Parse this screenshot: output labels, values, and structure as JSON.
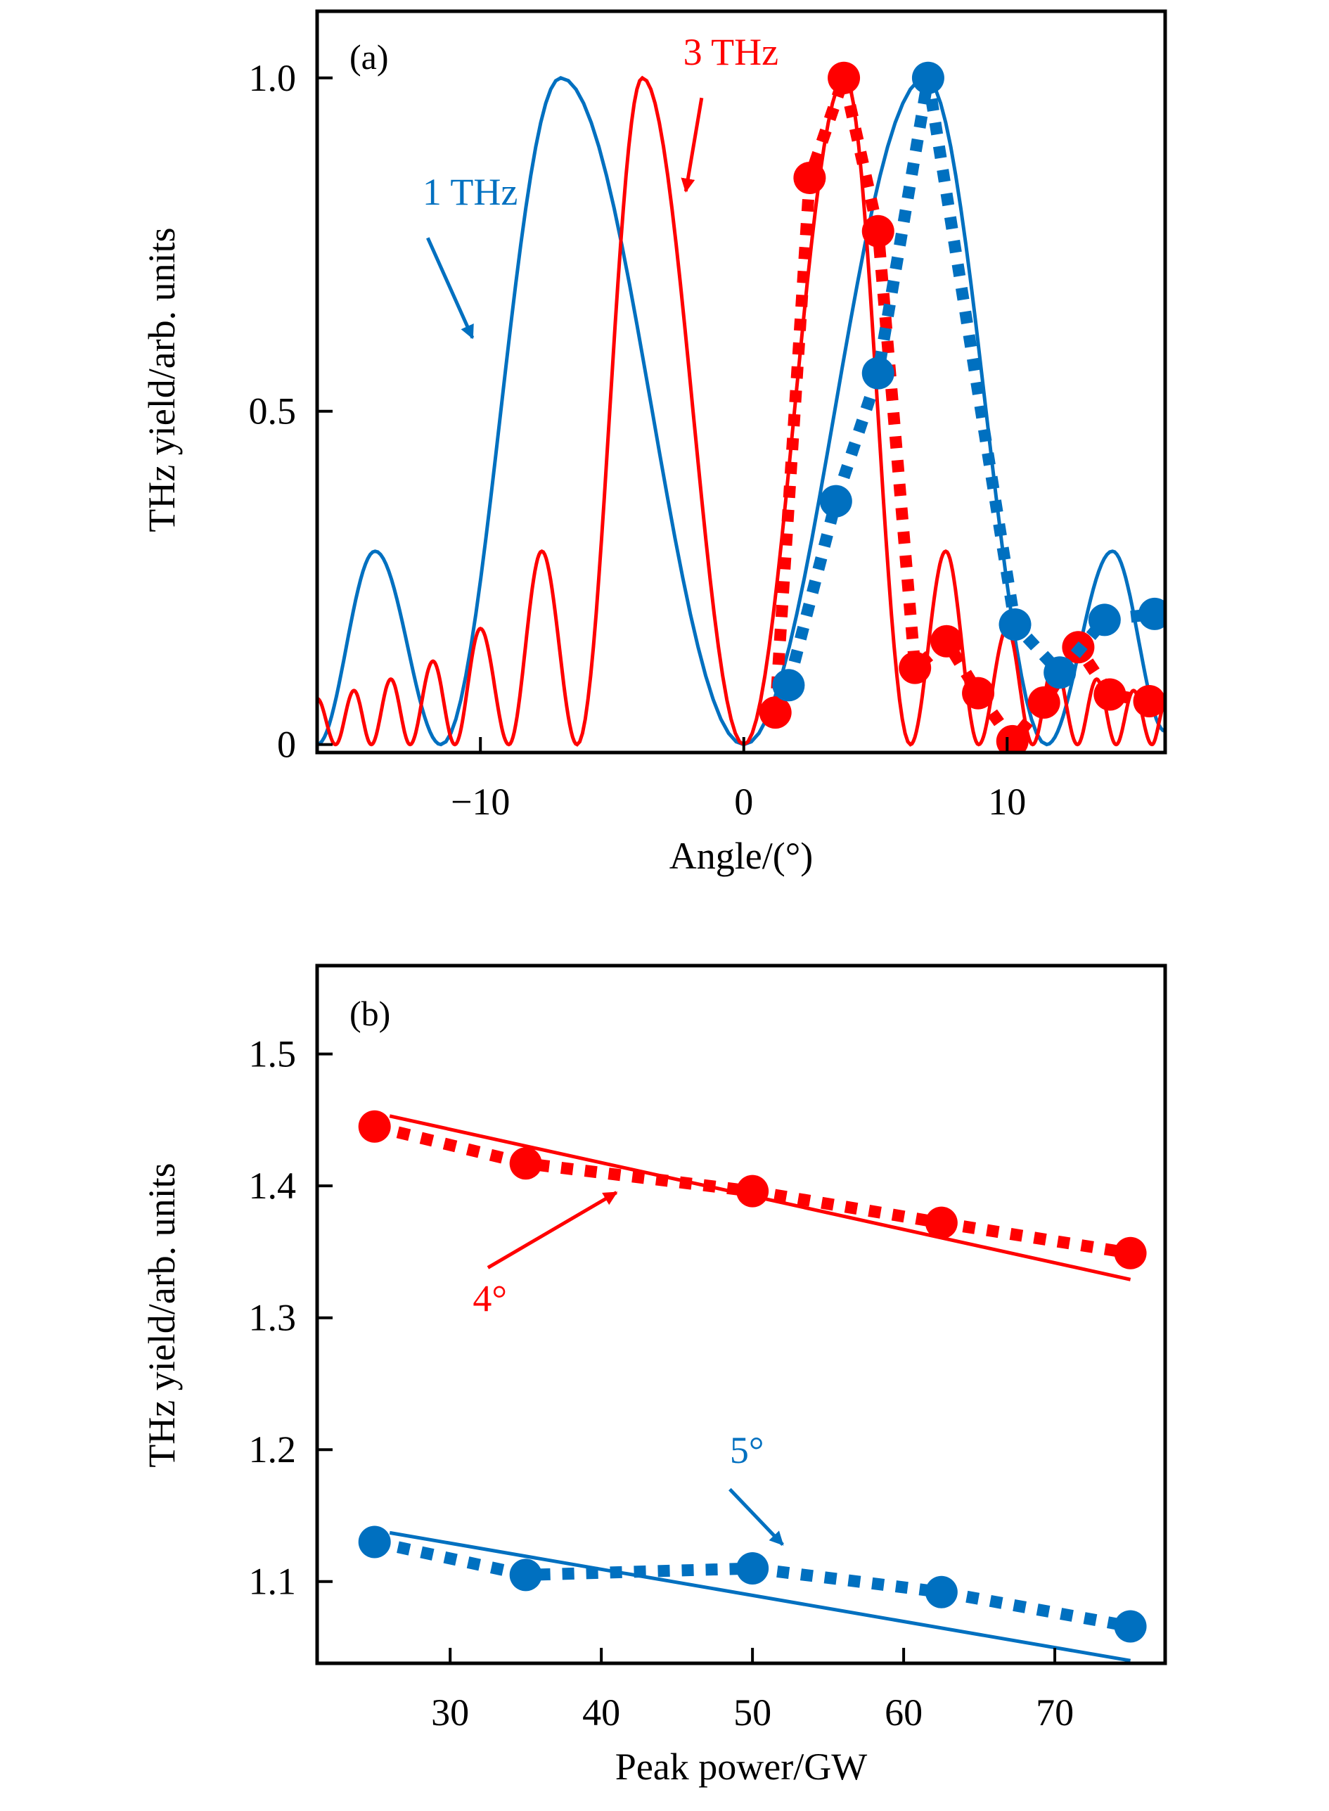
{
  "chart_data": [
    {
      "type": "line",
      "panel_label": "(a)",
      "title": "",
      "xlabel": "Angle/(°)",
      "ylabel": "THz yield/arb. units",
      "xlim": [
        -16.2,
        16.0
      ],
      "ylim": [
        -0.012,
        1.1
      ],
      "xticks": [
        -10,
        0,
        10
      ],
      "xtick_labels": [
        "−10",
        "0",
        "10"
      ],
      "yticks": [
        0,
        0.5,
        1.0
      ],
      "ytick_labels": [
        "0",
        "0.5",
        "1.0"
      ],
      "grid": false,
      "series": [
        {
          "name": "1 THz simulation",
          "color": "#0070C0",
          "style": "solid",
          "extrema": [
            [
              -16.2,
              0.0
            ],
            [
              -14.0,
              0.29
            ],
            [
              -11.5,
              0.0
            ],
            [
              -6.95,
              1.0
            ],
            [
              0,
              0.0
            ],
            [
              6.9,
              1.0
            ],
            [
              11.5,
              0.0
            ],
            [
              14.0,
              0.29
            ],
            [
              16.0,
              0.02
            ]
          ]
        },
        {
          "name": "3 THz simulation",
          "color": "#FF0000",
          "style": "solid",
          "extrema": [
            [
              -16.2,
              0.069
            ],
            [
              -15.5,
              0.0
            ],
            [
              -14.8,
              0.081
            ],
            [
              -14.14,
              0.0
            ],
            [
              -13.4,
              0.098
            ],
            [
              -12.67,
              0.0
            ],
            [
              -11.8,
              0.125
            ],
            [
              -10.97,
              0.0
            ],
            [
              -10.0,
              0.174
            ],
            [
              -8.92,
              0.0
            ],
            [
              -7.67,
              0.29
            ],
            [
              -6.33,
              0.0
            ],
            [
              -3.85,
              1.0
            ],
            [
              0,
              0.0
            ],
            [
              3.85,
              1.0
            ],
            [
              6.33,
              0.0
            ],
            [
              7.67,
              0.29
            ],
            [
              8.92,
              0.0
            ],
            [
              10.0,
              0.174
            ],
            [
              10.97,
              0.0
            ],
            [
              11.8,
              0.125
            ],
            [
              12.67,
              0.0
            ],
            [
              13.4,
              0.098
            ],
            [
              14.14,
              0.0
            ],
            [
              14.8,
              0.081
            ],
            [
              15.5,
              0.0
            ],
            [
              16.0,
              0.06
            ]
          ]
        },
        {
          "name": "3 THz measured",
          "color": "#FF0000",
          "style": "dotted-markers",
          "x": [
            1.2,
            2.5,
            3.8,
            5.1,
            6.5,
            7.7,
            8.9,
            10.2,
            11.4,
            12.7,
            13.9,
            15.4
          ],
          "y": [
            0.048,
            0.85,
            1.0,
            0.77,
            0.115,
            0.155,
            0.077,
            0.005,
            0.063,
            0.146,
            0.075,
            0.065
          ]
        },
        {
          "name": "1 THz measured",
          "color": "#0070C0",
          "style": "dotted-markers",
          "x": [
            1.7,
            3.5,
            5.1,
            7.0,
            10.3,
            12.0,
            13.7,
            15.6
          ],
          "y": [
            0.089,
            0.365,
            0.557,
            1.0,
            0.18,
            0.108,
            0.187,
            0.196
          ]
        }
      ],
      "annotations": [
        {
          "text": "1 THz",
          "color": "#0070C0",
          "text_xy": [
            -12.2,
            0.81
          ],
          "arrow_from": [
            -12.0,
            0.76
          ],
          "arrow_to": [
            -10.3,
            0.61
          ]
        },
        {
          "text": "3 THz",
          "color": "#FF0000",
          "text_xy": [
            -2.3,
            1.02
          ],
          "arrow_from": [
            -1.6,
            0.97
          ],
          "arrow_to": [
            -2.2,
            0.83
          ]
        }
      ]
    },
    {
      "type": "line",
      "panel_label": "(b)",
      "title": "",
      "xlabel": "Peak power/GW",
      "ylabel": "THz yield/arb. units",
      "xlim": [
        21.2,
        77.3
      ],
      "ylim": [
        1.038,
        1.567
      ],
      "xticks": [
        30,
        40,
        50,
        60,
        70
      ],
      "xtick_labels": [
        "30",
        "40",
        "50",
        "60",
        "70"
      ],
      "yticks": [
        1.1,
        1.2,
        1.3,
        1.4,
        1.5
      ],
      "ytick_labels": [
        "1.1",
        "1.2",
        "1.3",
        "1.4",
        "1.5"
      ],
      "grid": false,
      "series": [
        {
          "name": "4° measured",
          "color": "#FF0000",
          "style": "dotted-markers",
          "x": [
            25,
            35,
            50,
            62.5,
            75
          ],
          "y": [
            1.445,
            1.417,
            1.396,
            1.372,
            1.349
          ]
        },
        {
          "name": "4° linear fit",
          "color": "#FF0000",
          "style": "solid",
          "x": [
            26,
            75
          ],
          "y": [
            1.453,
            1.329
          ]
        },
        {
          "name": "5° measured",
          "color": "#0070C0",
          "style": "dotted-markers",
          "x": [
            25,
            35,
            50,
            62.5,
            75
          ],
          "y": [
            1.13,
            1.105,
            1.11,
            1.092,
            1.066
          ]
        },
        {
          "name": "5° linear fit",
          "color": "#0070C0",
          "style": "solid",
          "x": [
            26,
            75
          ],
          "y": [
            1.137,
            1.04
          ]
        }
      ],
      "annotations": [
        {
          "text": "4°",
          "color": "#FF0000",
          "text_xy": [
            31.5,
            1.305
          ],
          "arrow_from": [
            32.5,
            1.338
          ],
          "arrow_to": [
            41,
            1.395
          ]
        },
        {
          "text": "5°",
          "color": "#0070C0",
          "text_xy": [
            48.5,
            1.19
          ],
          "arrow_from": [
            48.5,
            1.17
          ],
          "arrow_to": [
            52,
            1.128
          ]
        }
      ]
    }
  ]
}
